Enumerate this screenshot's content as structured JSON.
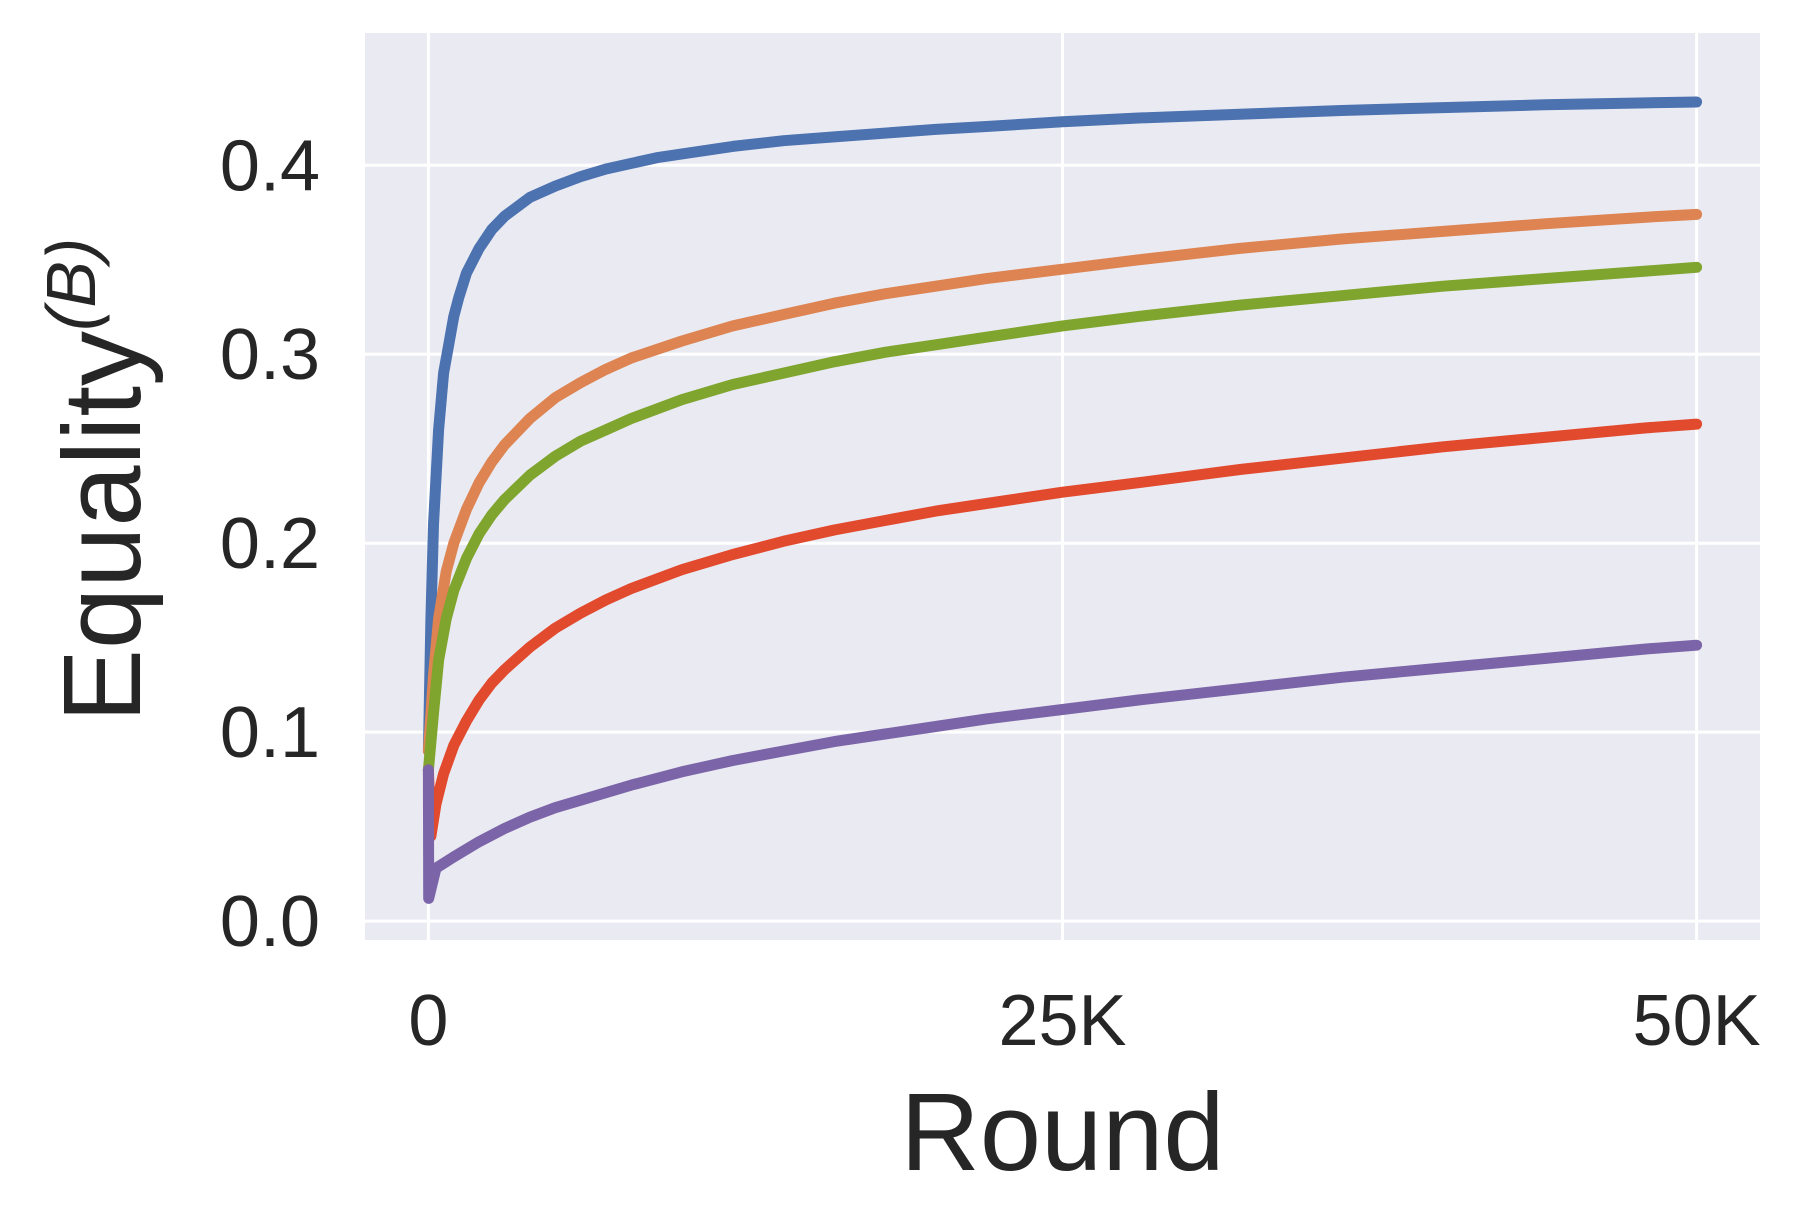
{
  "chart_data": {
    "type": "line",
    "xlabel": "Round",
    "ylabel_base": "Equality",
    "ylabel_sup": "(B)",
    "xlim": [
      -2500,
      52500
    ],
    "ylim": [
      -0.01,
      0.47
    ],
    "xticks": [
      0,
      25000,
      50000
    ],
    "xtick_labels": [
      "0",
      "25K",
      "50K"
    ],
    "yticks": [
      0.0,
      0.1,
      0.2,
      0.3,
      0.4
    ],
    "ytick_labels": [
      "0.0",
      "0.1",
      "0.2",
      "0.3",
      "0.4"
    ],
    "grid": true,
    "background": "#eaeaf2",
    "series": [
      {
        "color": "#4c72b0",
        "x": [
          0,
          100,
          200,
          400,
          600,
          800,
          1000,
          1200,
          1500,
          2000,
          2500,
          3000,
          4000,
          5000,
          6000,
          7000,
          8000,
          9000,
          10000,
          12000,
          14000,
          16000,
          18000,
          20000,
          22000,
          25000,
          28000,
          32000,
          36000,
          40000,
          44000,
          48000,
          50000
        ],
        "y": [
          0.09,
          0.16,
          0.21,
          0.26,
          0.29,
          0.305,
          0.32,
          0.33,
          0.343,
          0.356,
          0.366,
          0.373,
          0.383,
          0.389,
          0.394,
          0.398,
          0.401,
          0.404,
          0.406,
          0.41,
          0.413,
          0.415,
          0.417,
          0.419,
          0.4205,
          0.423,
          0.425,
          0.427,
          0.429,
          0.4305,
          0.432,
          0.433,
          0.4335
        ]
      },
      {
        "color": "#dd8452",
        "x": [
          0,
          200,
          400,
          700,
          1000,
          1500,
          2000,
          2500,
          3000,
          4000,
          5000,
          6000,
          7000,
          8000,
          10000,
          12000,
          14000,
          16000,
          18000,
          20000,
          22000,
          25000,
          28000,
          32000,
          36000,
          40000,
          44000,
          48000,
          50000
        ],
        "y": [
          0.09,
          0.13,
          0.16,
          0.185,
          0.2,
          0.218,
          0.232,
          0.243,
          0.252,
          0.266,
          0.277,
          0.285,
          0.292,
          0.298,
          0.307,
          0.315,
          0.321,
          0.327,
          0.332,
          0.336,
          0.34,
          0.345,
          0.35,
          0.356,
          0.361,
          0.365,
          0.369,
          0.3725,
          0.374
        ]
      },
      {
        "color": "#7fa52e",
        "x": [
          0,
          200,
          400,
          700,
          1000,
          1500,
          2000,
          2500,
          3000,
          4000,
          5000,
          6000,
          7000,
          8000,
          10000,
          12000,
          14000,
          16000,
          18000,
          20000,
          22000,
          25000,
          28000,
          32000,
          36000,
          40000,
          44000,
          48000,
          50000
        ],
        "y": [
          0.08,
          0.11,
          0.138,
          0.16,
          0.175,
          0.192,
          0.205,
          0.215,
          0.223,
          0.236,
          0.246,
          0.254,
          0.26,
          0.266,
          0.276,
          0.284,
          0.29,
          0.296,
          0.301,
          0.305,
          0.309,
          0.315,
          0.32,
          0.326,
          0.331,
          0.336,
          0.34,
          0.344,
          0.346
        ]
      },
      {
        "color": "#e24a2e",
        "x": [
          0,
          100,
          300,
          600,
          1000,
          1500,
          2000,
          2500,
          3000,
          4000,
          5000,
          6000,
          7000,
          8000,
          10000,
          12000,
          14000,
          16000,
          18000,
          20000,
          22000,
          25000,
          28000,
          32000,
          36000,
          40000,
          44000,
          48000,
          50000
        ],
        "y": [
          0.08,
          0.045,
          0.062,
          0.078,
          0.093,
          0.106,
          0.117,
          0.126,
          0.133,
          0.145,
          0.155,
          0.163,
          0.17,
          0.176,
          0.186,
          0.194,
          0.201,
          0.207,
          0.212,
          0.217,
          0.221,
          0.227,
          0.232,
          0.239,
          0.245,
          0.251,
          0.256,
          0.261,
          0.263
        ]
      },
      {
        "color": "#7b65a8",
        "x": [
          0,
          10,
          300,
          1000,
          2000,
          3000,
          4000,
          5000,
          6000,
          8000,
          10000,
          12000,
          14000,
          16000,
          18000,
          20000,
          22000,
          25000,
          28000,
          32000,
          36000,
          40000,
          44000,
          48000,
          50000
        ],
        "y": [
          0.08,
          0.012,
          0.028,
          0.034,
          0.042,
          0.049,
          0.055,
          0.06,
          0.064,
          0.072,
          0.079,
          0.085,
          0.09,
          0.095,
          0.099,
          0.103,
          0.107,
          0.112,
          0.117,
          0.123,
          0.129,
          0.134,
          0.139,
          0.144,
          0.146
        ]
      }
    ]
  }
}
